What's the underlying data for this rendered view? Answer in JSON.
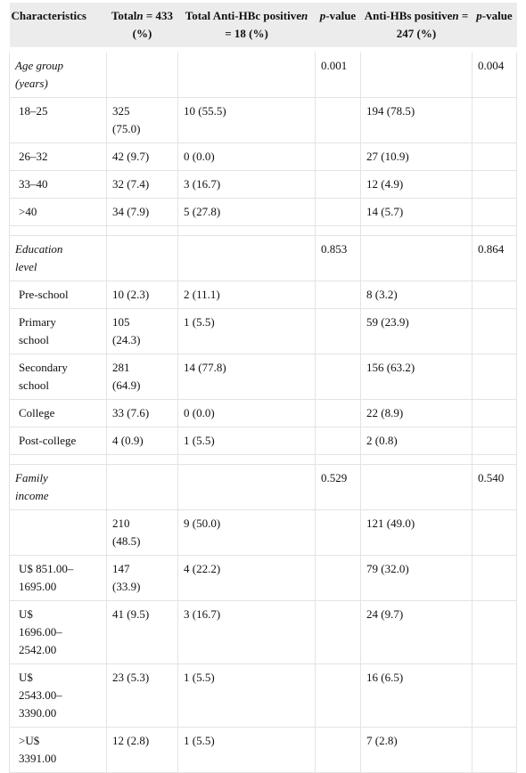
{
  "table": {
    "header": [
      [
        {
          "text": "Characteristics"
        }
      ],
      [
        {
          "text": "Total"
        },
        {
          "text": "n",
          "italic": true
        },
        {
          "text": " = 433 (%)"
        }
      ],
      [
        {
          "text": "Total Anti-HBc positive"
        },
        {
          "text": "n",
          "italic": true
        },
        {
          "text": " = 18 (%)"
        }
      ],
      [
        {
          "text": "p",
          "italic": true
        },
        {
          "text": "-value"
        }
      ],
      [
        {
          "text": "Anti-HBs positive"
        },
        {
          "text": "n",
          "italic": true
        },
        {
          "text": " = 247 (%)"
        }
      ],
      [
        {
          "text": "p",
          "italic": true
        },
        {
          "text": "-value"
        }
      ]
    ],
    "sections": [
      {
        "title": "Age group (years)",
        "p_anti_hbc": "0.001",
        "p_anti_hbs": "0.004",
        "rows": [
          [
            "18–25",
            "325 (75.0)",
            "10 (55.5)",
            "194 (78.5)"
          ],
          [
            "26–32",
            "42 (9.7)",
            "0 (0.0)",
            "27 (10.9)"
          ],
          [
            "33–40",
            "32 (7.4)",
            "3 (16.7)",
            "12 (4.9)"
          ],
          [
            ">40",
            "34 (7.9)",
            "5 (27.8)",
            "14 (5.7)"
          ]
        ]
      },
      {
        "title": "Education level",
        "p_anti_hbc": "0.853",
        "p_anti_hbs": "0.864",
        "rows": [
          [
            "Pre-school",
            "10 (2.3)",
            "2 (11.1)",
            "8 (3.2)"
          ],
          [
            "Primary school",
            "105 (24.3)",
            "1 (5.5)",
            "59 (23.9)"
          ],
          [
            "Secondary school",
            "281 (64.9)",
            "14 (77.8)",
            "156 (63.2)"
          ],
          [
            "College",
            "33 (7.6)",
            "0 (0.0)",
            "22 (8.9)"
          ],
          [
            "Post-college",
            "4 (0.9)",
            "1 (5.5)",
            "2 (0.8)"
          ]
        ]
      },
      {
        "title": "Family income",
        "p_anti_hbc": "0.529",
        "p_anti_hbs": "0.540",
        "rows": [
          [
            null,
            "210 (48.5)",
            "9 (50.0)",
            "121 (49.0)"
          ],
          [
            "U$ 851.00–1695.00",
            "147 (33.9)",
            "4 (22.2)",
            "79 (32.0)"
          ],
          [
            "U$ 1696.00–2542.00",
            "41 (9.5)",
            "3 (16.7)",
            "24 (9.7)"
          ],
          [
            "U$ 2543.00–3390.00",
            "23 (5.3)",
            "1 (5.5)",
            "16 (6.5)"
          ],
          [
            ">U$ 3391.00",
            "12 (2.8)",
            "1 (5.5)",
            "7 (2.8)"
          ]
        ]
      }
    ]
  }
}
